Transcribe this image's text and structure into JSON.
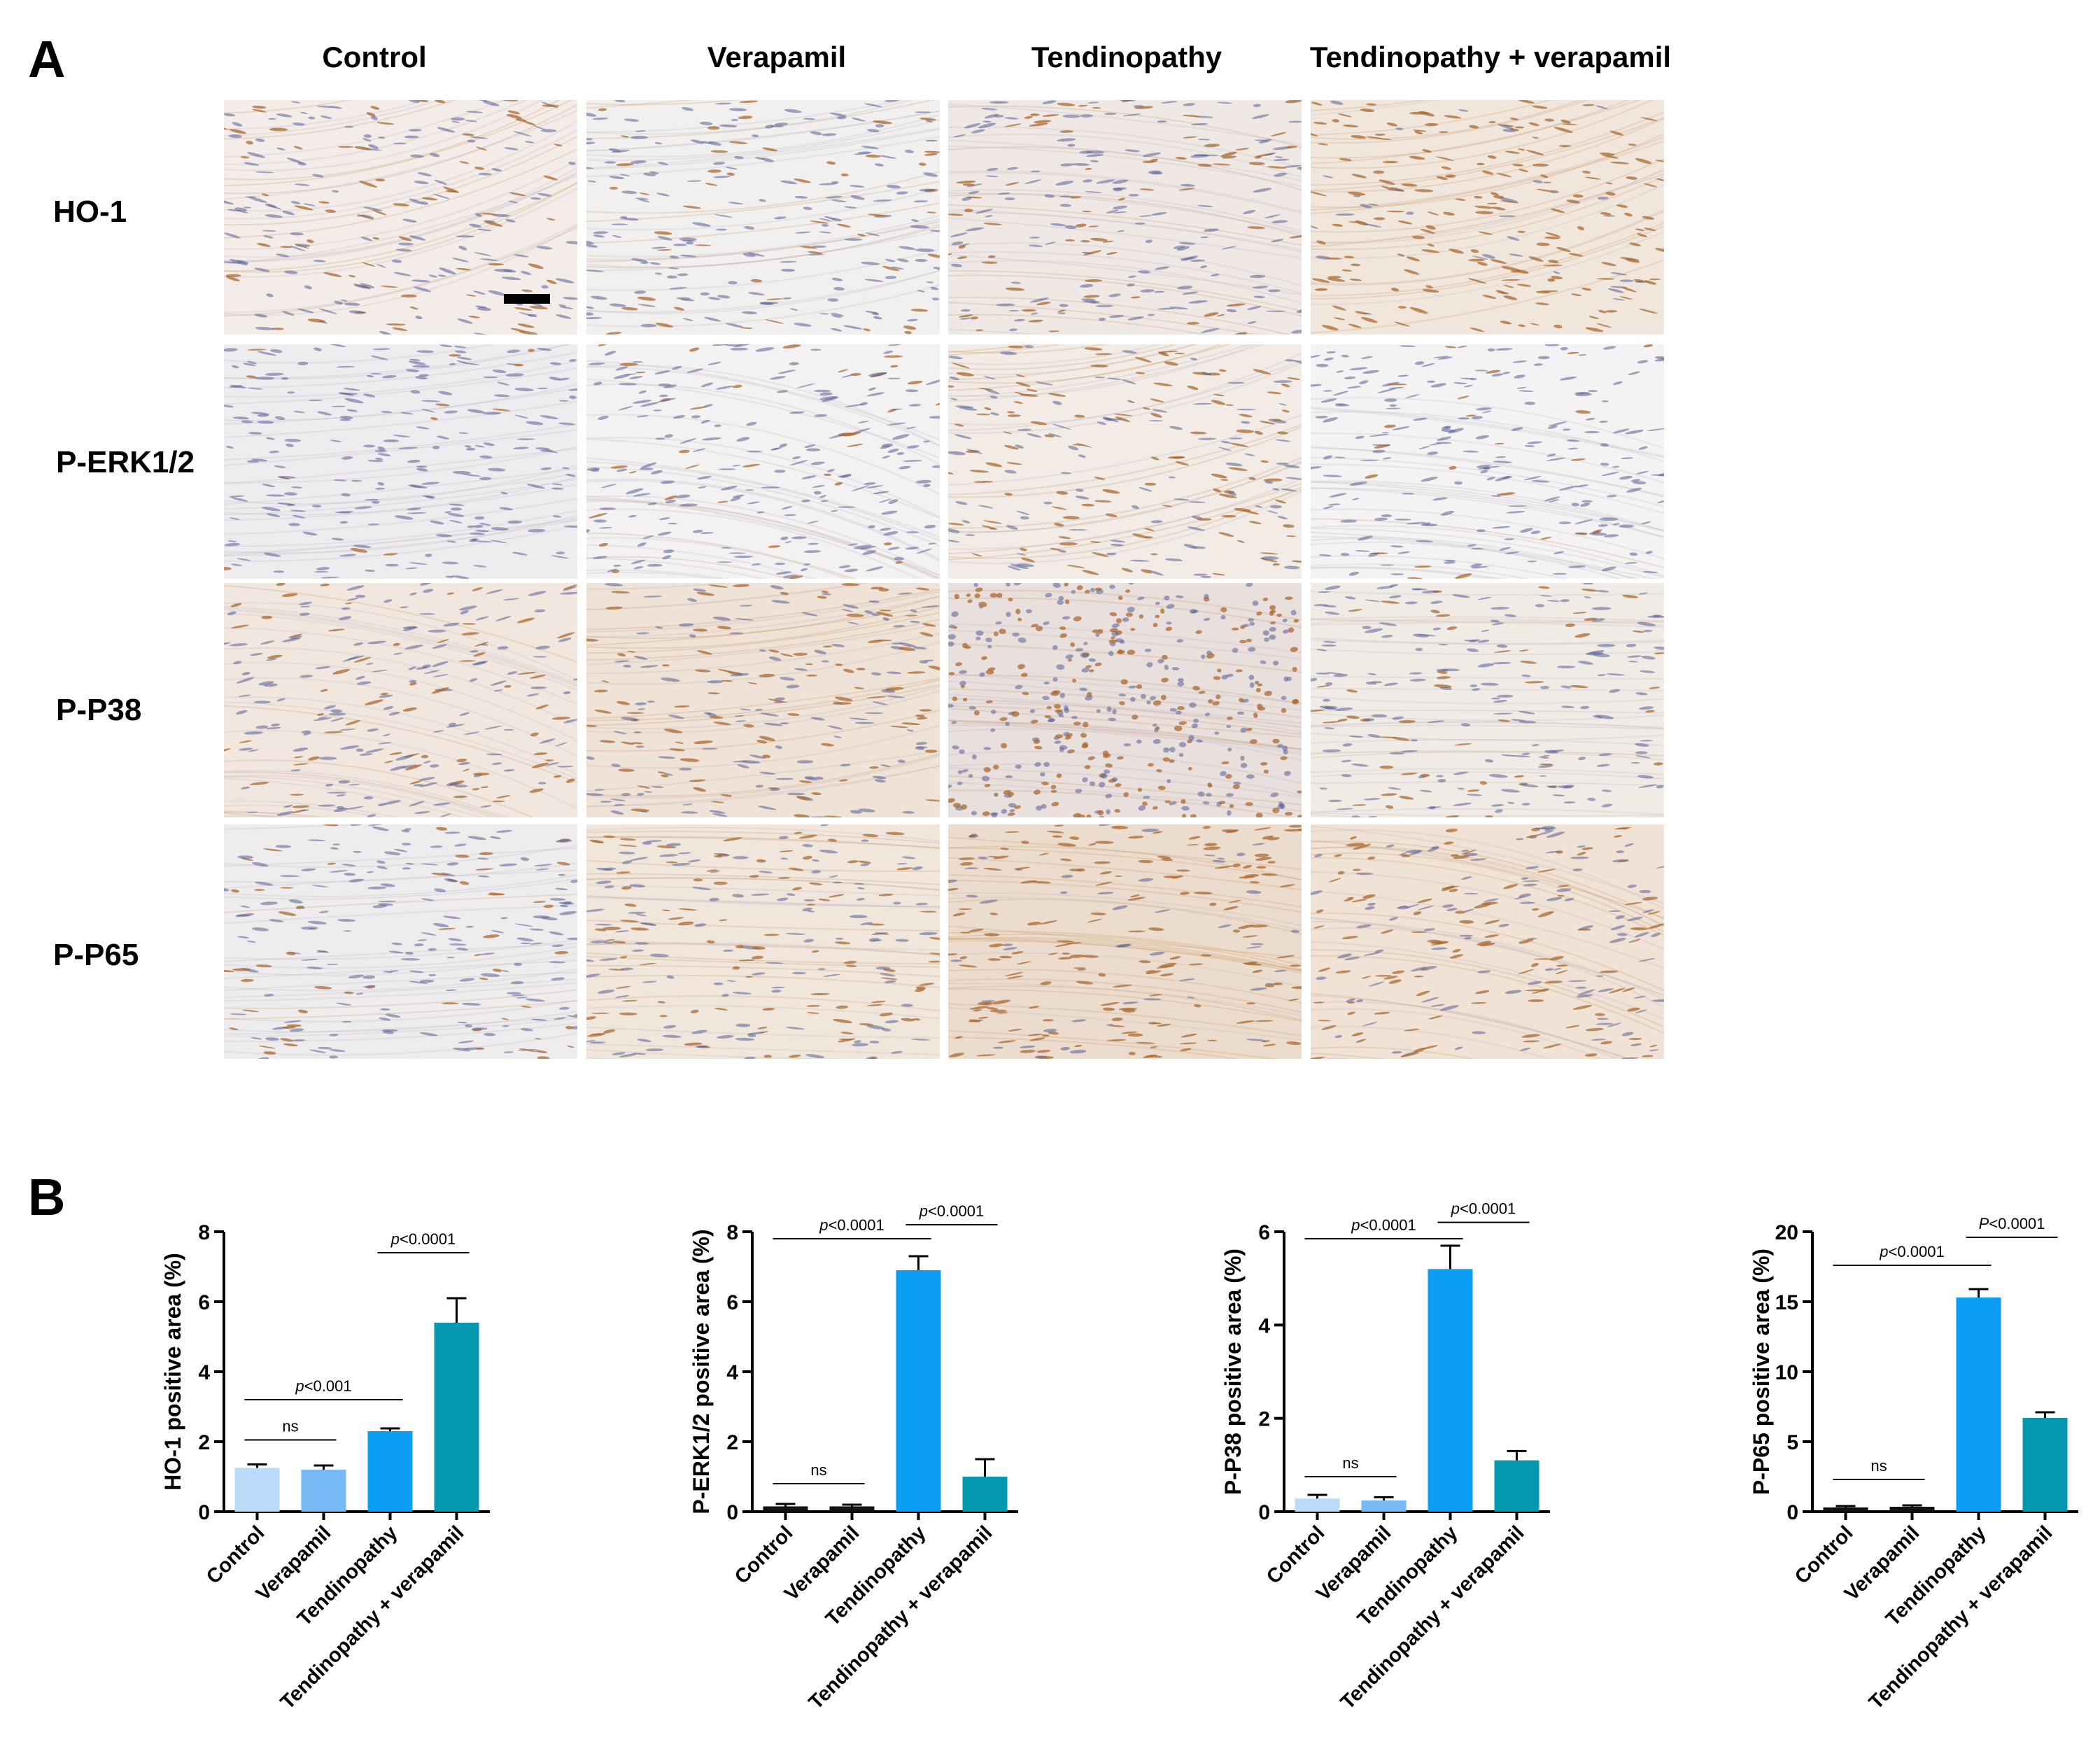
{
  "panel_a": {
    "letter": "A",
    "columns": [
      "Control",
      "Verapamil",
      "Tendinopathy",
      "Tendinopathy + verapamil"
    ],
    "rows": [
      "HO-1",
      "P-ERK1/2",
      "P-P38",
      "P-P65"
    ]
  },
  "panel_b": {
    "letter": "B"
  },
  "chart_data": [
    {
      "type": "bar",
      "categories": [
        "Control",
        "Verapamil",
        "Tendinopathy",
        "Tendinopathy + verapamil"
      ],
      "values": [
        1.25,
        1.2,
        2.3,
        5.4
      ],
      "errors": [
        0.1,
        0.12,
        0.08,
        0.7
      ],
      "ylabel": "HO-1 positive area (%)",
      "ylim": [
        0,
        8
      ],
      "yticks": [
        "0",
        "2",
        "4",
        "6",
        "8"
      ],
      "colors": [
        "#b9dbf7",
        "#77baf5",
        "#0c9df5",
        "#0398ad"
      ],
      "annotations": [
        {
          "text": "ns",
          "from": 0,
          "to": 1,
          "level": 2.05
        },
        {
          "text": "p<0.001",
          "from": 0,
          "to": 2,
          "level": 3.2
        },
        {
          "text": "p<0.0001",
          "from": 2,
          "to": 3,
          "level": 7.4
        }
      ]
    },
    {
      "type": "bar",
      "categories": [
        "Control",
        "Verapamil",
        "Tendinopathy",
        "Tendinopathy + verapamil"
      ],
      "values": [
        0.15,
        0.15,
        6.9,
        1.0
      ],
      "errors": [
        0.07,
        0.05,
        0.4,
        0.5
      ],
      "ylabel": "P-ERK1/2 positive area (%)",
      "ylim": [
        0,
        8
      ],
      "yticks": [
        "0",
        "2",
        "4",
        "6",
        "8"
      ],
      "colors": [
        "#111111",
        "#111111",
        "#0c9df5",
        "#0398ad"
      ],
      "annotations": [
        {
          "text": "ns",
          "from": 0,
          "to": 1,
          "level": 0.8
        },
        {
          "text": "p<0.0001",
          "from": 0,
          "to": 2,
          "level": 7.8
        },
        {
          "text": "p<0.0001",
          "from": 2,
          "to": 3,
          "level": 8.2
        }
      ]
    },
    {
      "type": "bar",
      "categories": [
        "Control",
        "Verapamil",
        "Tendinopathy",
        "Tendinopathy + verapamil"
      ],
      "values": [
        0.28,
        0.24,
        5.2,
        1.1
      ],
      "errors": [
        0.08,
        0.07,
        0.5,
        0.2
      ],
      "ylabel": "P-P38 positive area (%)",
      "ylim": [
        0,
        6
      ],
      "yticks": [
        "0",
        "2",
        "4",
        "6"
      ],
      "colors": [
        "#b9dbf7",
        "#77baf5",
        "#0c9df5",
        "#0398ad"
      ],
      "annotations": [
        {
          "text": "ns",
          "from": 0,
          "to": 1,
          "level": 0.75
        },
        {
          "text": "p<0.0001",
          "from": 0,
          "to": 2,
          "level": 5.85
        },
        {
          "text": "p<0.0001",
          "from": 2,
          "to": 3,
          "level": 6.2
        }
      ]
    },
    {
      "type": "bar",
      "categories": [
        "Control",
        "Verapamil",
        "Tendinopathy",
        "Tendinopathy + verapamil"
      ],
      "values": [
        0.3,
        0.35,
        15.3,
        6.7
      ],
      "errors": [
        0.1,
        0.1,
        0.6,
        0.4
      ],
      "ylabel": "P-P65 positive area (%)",
      "ylim": [
        0,
        20
      ],
      "yticks": [
        "0",
        "5",
        "10",
        "15",
        "20"
      ],
      "colors": [
        "#111111",
        "#111111",
        "#0c9df5",
        "#0398ad"
      ],
      "annotations": [
        {
          "text": "ns",
          "from": 0,
          "to": 1,
          "level": 2.3
        },
        {
          "text": "p<0.0001",
          "from": 0,
          "to": 2,
          "level": 17.6
        },
        {
          "text": "P<0.0001",
          "from": 2,
          "to": 3,
          "level": 19.6
        }
      ]
    }
  ]
}
